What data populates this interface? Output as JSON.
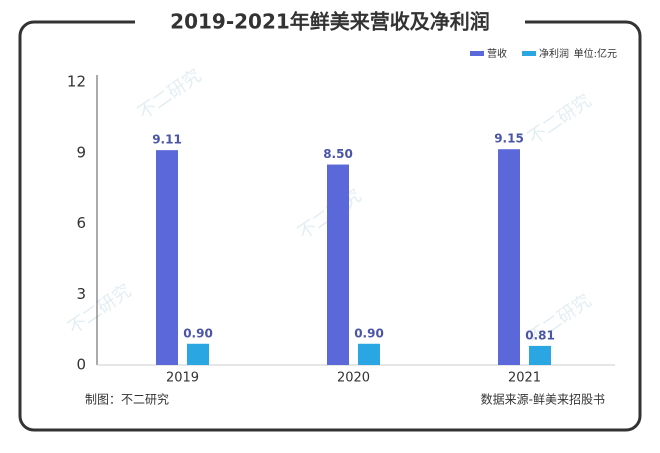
{
  "chart_data": {
    "type": "bar",
    "title": "2019-2021年鲜美来营收及净利润",
    "unit": "单位:亿元",
    "categories": [
      "2019",
      "2020",
      "2021"
    ],
    "series": [
      {
        "name": "营收",
        "color": "#5b68d9",
        "values": [
          9.11,
          8.5,
          9.15
        ],
        "value_labels": [
          "9.11",
          "8.50",
          "9.15"
        ]
      },
      {
        "name": "净利润",
        "color": "#2aa6e2",
        "values": [
          0.9,
          0.9,
          0.81
        ],
        "value_labels": [
          "0.90",
          "0.90",
          "0.81"
        ]
      }
    ],
    "ylim": [
      0,
      12
    ],
    "yticks": [
      0,
      3,
      6,
      9,
      12
    ],
    "grid": false,
    "legend": "top-right",
    "source": "数据来源-鲜美来招股书",
    "credit": "制图：不二研究",
    "watermark": "不二研究"
  }
}
